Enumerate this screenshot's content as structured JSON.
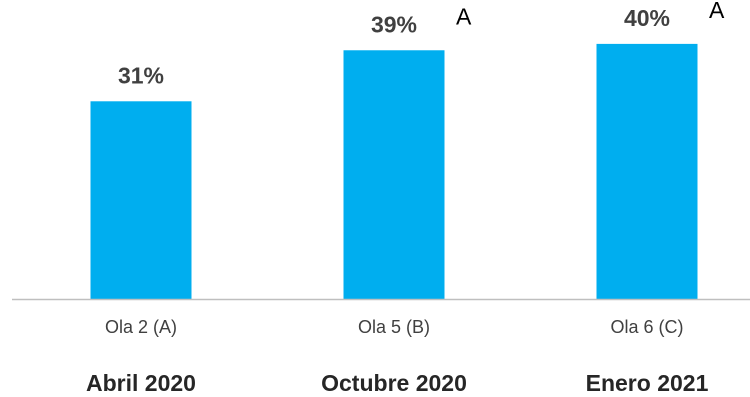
{
  "chart_data": {
    "type": "bar",
    "categories": [
      "Ola 2 (A)",
      "Ola 5 (B)",
      "Ola 6 (C)"
    ],
    "values": [
      31,
      39,
      40
    ],
    "value_labels": [
      "31%",
      "39%",
      "40%"
    ],
    "significance_marks": [
      "",
      "A",
      "A"
    ],
    "periods": [
      "Abril 2020",
      "Octubre 2020",
      "Enero 2021"
    ],
    "ylim": [
      0,
      45
    ],
    "grid": false,
    "bar_color": "#00AEEF",
    "axis_color": "#BFBFBF"
  }
}
